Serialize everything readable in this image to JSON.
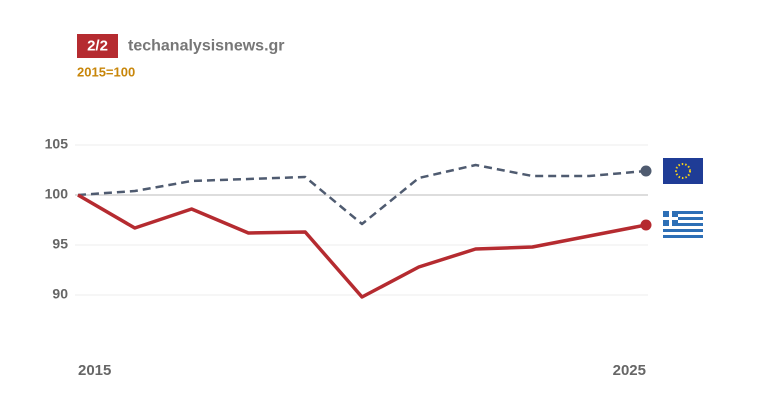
{
  "chart_data": {
    "type": "line",
    "badge": "2/2",
    "source": "techanalysisnews.gr",
    "subtitle": "2015=100",
    "x": [
      2015,
      2016,
      2017,
      2018,
      2019,
      2020,
      2021,
      2022,
      2023,
      2024,
      2025
    ],
    "xlim": [
      2015,
      2025
    ],
    "xticks": [
      2015,
      2025
    ],
    "ylim": [
      85,
      107
    ],
    "yticks": [
      90,
      95,
      100,
      105
    ],
    "grid": true,
    "series": [
      {
        "color": "#4f5b70",
        "dashed": true,
        "values": [
          100,
          100.4,
          101.4,
          101.6,
          101.8,
          97.1,
          101.7,
          103.0,
          101.9,
          101.9,
          102.4
        ]
      },
      {
        "color": "#b52b30",
        "dashed": false,
        "values": [
          100,
          96.7,
          98.6,
          96.2,
          96.3,
          89.8,
          92.8,
          94.6,
          94.8,
          95.9,
          97.0
        ]
      }
    ]
  }
}
